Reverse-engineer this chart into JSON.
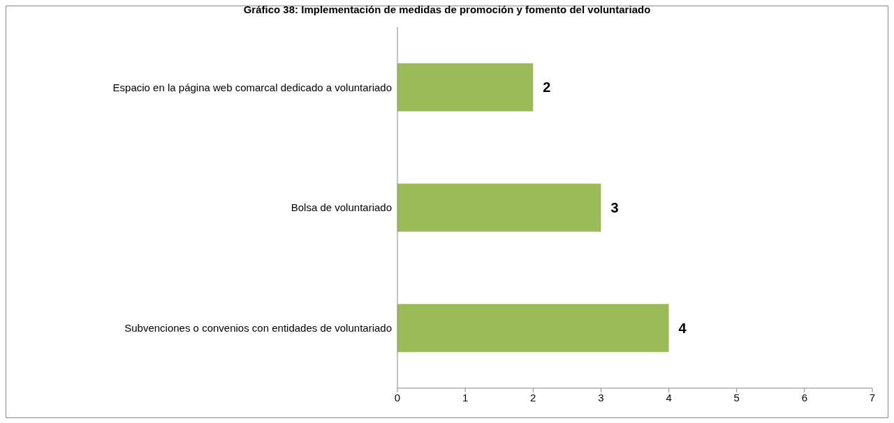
{
  "chart_data": {
    "type": "bar",
    "title": "Gráfico 38: Implementación de medidas de promoción y fomento del voluntariado",
    "orientation": "horizontal",
    "categories": [
      "Espacio en la página web comarcal dedicado a voluntariado",
      "Bolsa de voluntariado",
      "Subvenciones o convenios con entidades de voluntariado"
    ],
    "values": [
      2,
      3,
      4
    ],
    "color": "#9bbb59",
    "xlim": [
      0,
      7
    ],
    "xticks": [
      0,
      1,
      2,
      3,
      4,
      5,
      6,
      7
    ],
    "grid": false,
    "data_labels": true
  }
}
